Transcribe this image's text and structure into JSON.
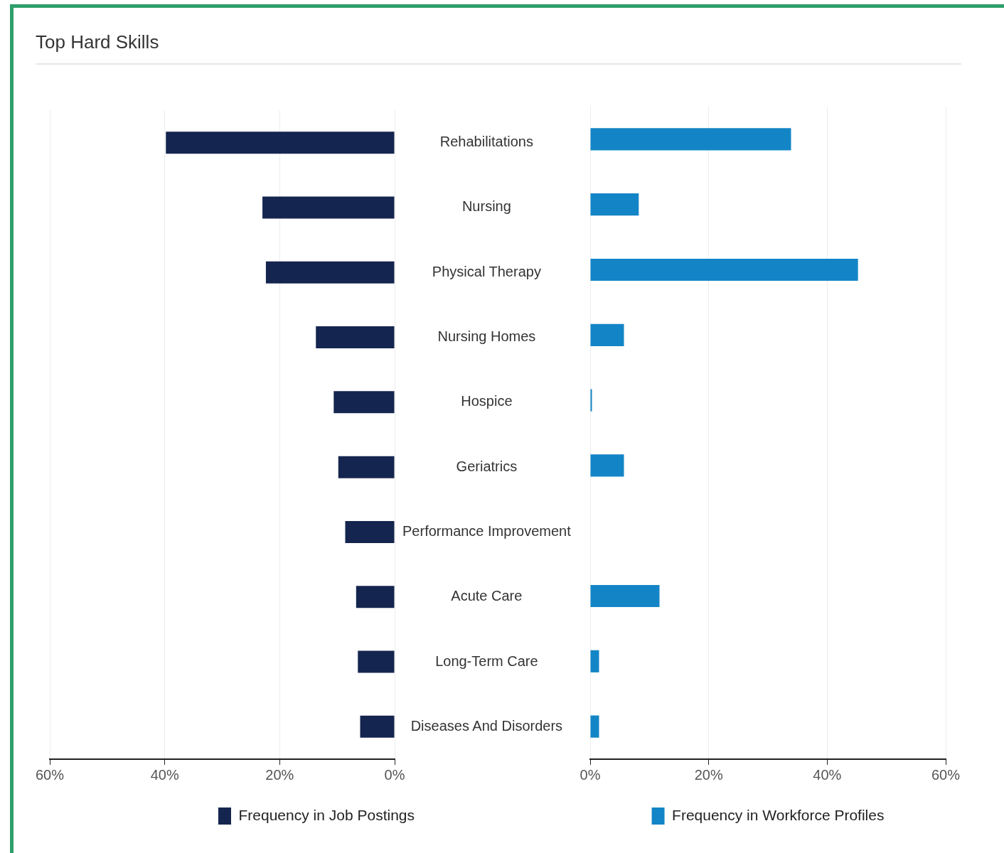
{
  "chart_data": [
    {
      "type": "bar",
      "orientation": "horizontal",
      "title": "Top Hard Skills",
      "categories": [
        "Rehabilitations",
        "Nursing",
        "Physical Therapy",
        "Nursing Homes",
        "Hospice",
        "Geriatrics",
        "Performance Improvement",
        "Acute Care",
        "Long-Term Care",
        "Diseases And Disorders"
      ],
      "series": [
        {
          "name": "Frequency in Job Postings",
          "color": "#14254f",
          "values": [
            39.8,
            23.0,
            22.4,
            13.7,
            10.6,
            9.8,
            8.6,
            6.7,
            6.4,
            6.0
          ]
        }
      ],
      "xlim": [
        60,
        0
      ],
      "xticks": [
        {
          "value": 60,
          "label": "60%"
        },
        {
          "value": 40,
          "label": "40%"
        },
        {
          "value": 20,
          "label": "20%"
        },
        {
          "value": 0,
          "label": "0%"
        }
      ],
      "grid": "x",
      "legend": "bottom"
    },
    {
      "type": "bar",
      "orientation": "horizontal",
      "categories": [
        null,
        null,
        null,
        null,
        null,
        null,
        null,
        null,
        null,
        null
      ],
      "series": [
        {
          "name": "Frequency in Workforce Profiles",
          "color": "#1385c6",
          "values": [
            33.9,
            8.2,
            45.2,
            5.7,
            0.3,
            5.7,
            0,
            11.7,
            1.5,
            1.5
          ]
        }
      ],
      "xlim": [
        0,
        60
      ],
      "xticks": [
        {
          "value": 0,
          "label": "0%"
        },
        {
          "value": 20,
          "label": "20%"
        },
        {
          "value": 40,
          "label": "40%"
        },
        {
          "value": 60,
          "label": "60%"
        }
      ],
      "grid": "x",
      "legend": "bottom",
      "tick_labels": "x"
    }
  ]
}
